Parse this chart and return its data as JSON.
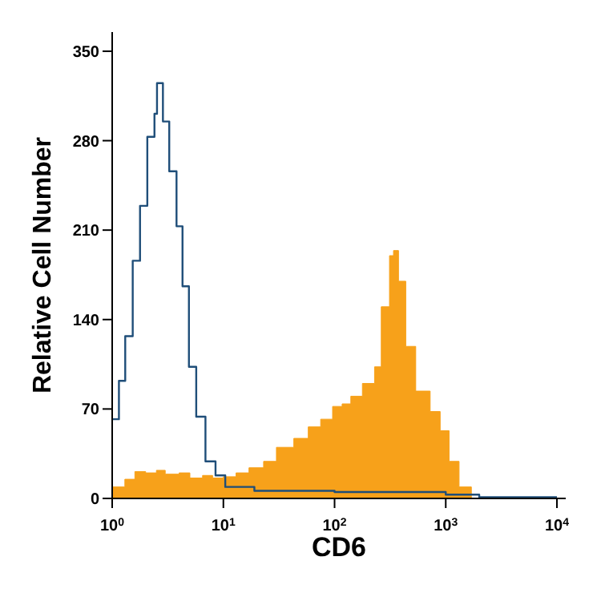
{
  "chart_data": {
    "type": "area",
    "xlabel": "CD6",
    "ylabel": "Relative Cell Number",
    "log": "x",
    "xlim": [
      1,
      12000
    ],
    "ylim": [
      0,
      365
    ],
    "xticks": [
      {
        "value": 1,
        "label": "10$^{0}$"
      },
      {
        "value": 10,
        "label": "10$^{1}$"
      },
      {
        "value": 100,
        "label": "10$^{2}$"
      },
      {
        "value": 1000,
        "label": "10$^{3}$"
      },
      {
        "value": 10000,
        "label": "10$^{4}$"
      }
    ],
    "yticks": [
      0,
      70,
      140,
      210,
      280,
      350
    ],
    "series": [
      {
        "color": "#f7a11a",
        "x": [
          1,
          1.3,
          1.6,
          2,
          2.5,
          3,
          4,
          5,
          6.5,
          8,
          10,
          13,
          17,
          23,
          30,
          43,
          58,
          75,
          96,
          117,
          140,
          178,
          229,
          263,
          312,
          339,
          376,
          437,
          537,
          724,
          891,
          1072,
          1318,
          1700
        ],
        "values": [
          9,
          15,
          21,
          20,
          22,
          19,
          20,
          16,
          18,
          16,
          17,
          20,
          24,
          29,
          40,
          47,
          56,
          62,
          72,
          74,
          80,
          90,
          103,
          150,
          190,
          194,
          170,
          119,
          84,
          68,
          53,
          29,
          9,
          0
        ]
      },
      {
        "type": "step",
        "color": "#1f4e79",
        "x": [
          1,
          1.15,
          1.31,
          1.53,
          1.78,
          2.07,
          2.4,
          2.53,
          2.86,
          3.26,
          3.79,
          4.29,
          4.9,
          5.7,
          6.9,
          8.5,
          10.4,
          19,
          100,
          1000,
          2000,
          10000
        ],
        "values": [
          62,
          92,
          127,
          186,
          229,
          283,
          301,
          325,
          295,
          256,
          213,
          166,
          103,
          64,
          29,
          18,
          9,
          6,
          5,
          3,
          1,
          1
        ]
      }
    ]
  }
}
